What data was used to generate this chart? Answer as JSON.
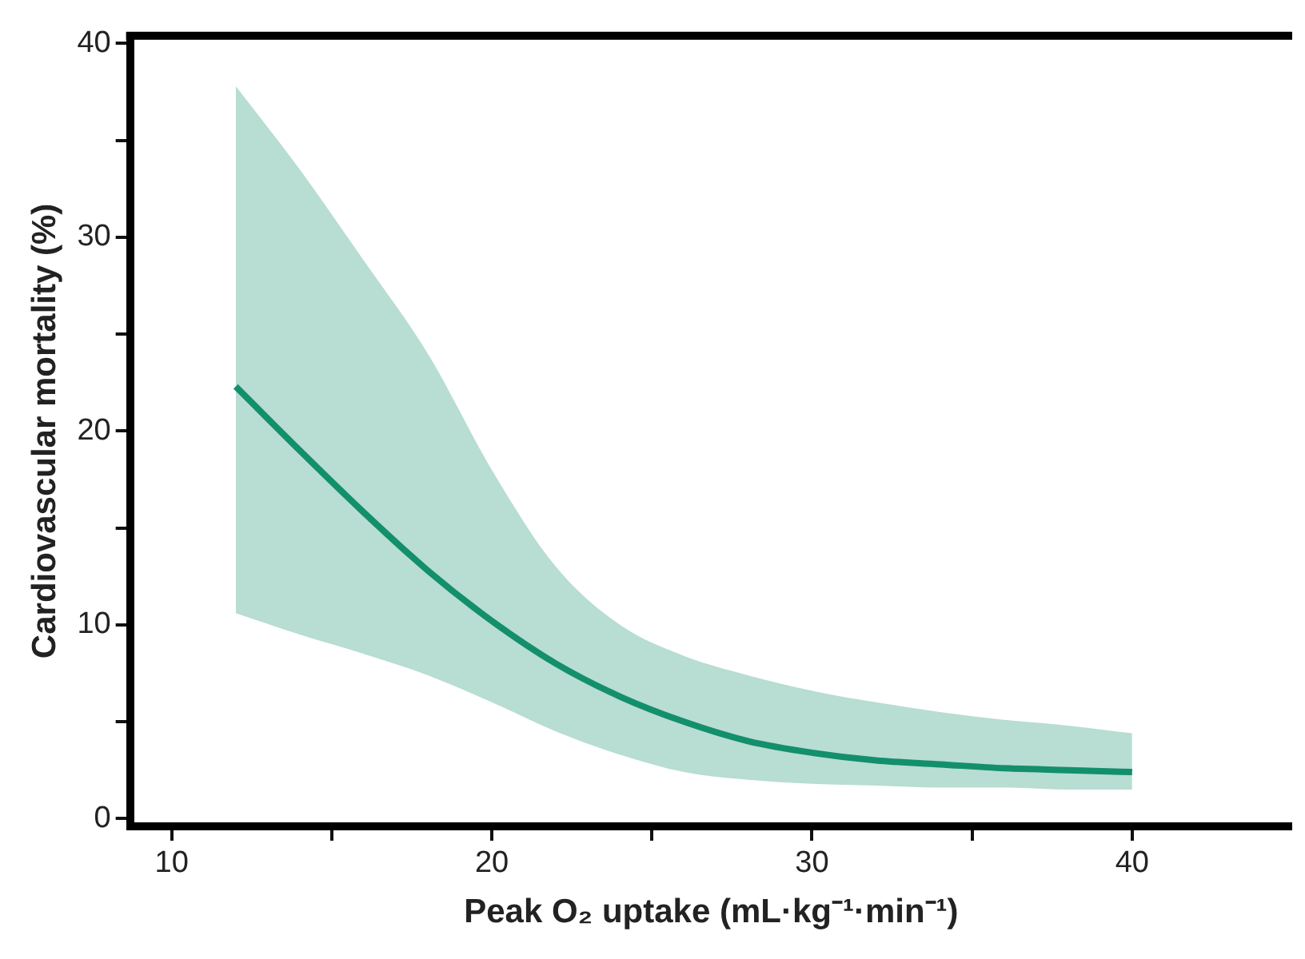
{
  "chart_data": {
    "type": "line",
    "xlabel": "Peak O₂ uptake (mL·kg⁻¹·min⁻¹)",
    "ylabel": "Cardiovascular mortality (%)",
    "x": [
      12,
      14,
      16,
      18,
      20,
      22,
      24,
      26,
      28,
      30,
      32,
      34,
      36,
      38,
      40
    ],
    "series": [
      {
        "color": "#14906c",
        "values": [
          22.3,
          19.0,
          15.8,
          12.8,
          10.2,
          8.0,
          6.3,
          5.0,
          4.0,
          3.4,
          3.0,
          2.8,
          2.6,
          2.5,
          2.4
        ],
        "lower": [
          10.6,
          9.5,
          8.5,
          7.4,
          6.0,
          4.5,
          3.3,
          2.4,
          2.0,
          1.8,
          1.7,
          1.6,
          1.6,
          1.5,
          1.5
        ],
        "upper": [
          37.8,
          33.5,
          28.8,
          24.0,
          18.0,
          13.0,
          10.0,
          8.4,
          7.4,
          6.6,
          6.0,
          5.5,
          5.1,
          4.8,
          4.4
        ]
      }
    ],
    "xlim": [
      8.7,
      45
    ],
    "ylim": [
      -0.4,
      40.4
    ],
    "xticks": [
      10,
      {
        "value": 15,
        "label": null
      },
      20,
      {
        "value": 25,
        "label": null
      },
      30,
      {
        "value": 35,
        "label": null
      },
      40
    ],
    "yticks": [
      0,
      {
        "value": 5,
        "label": null
      },
      10,
      {
        "value": 15,
        "label": null
      },
      20,
      {
        "value": 25,
        "label": null
      },
      30,
      {
        "value": 35,
        "label": null
      },
      40
    ],
    "grid": false,
    "legend": false,
    "marker": "none",
    "line_style": "solid"
  }
}
